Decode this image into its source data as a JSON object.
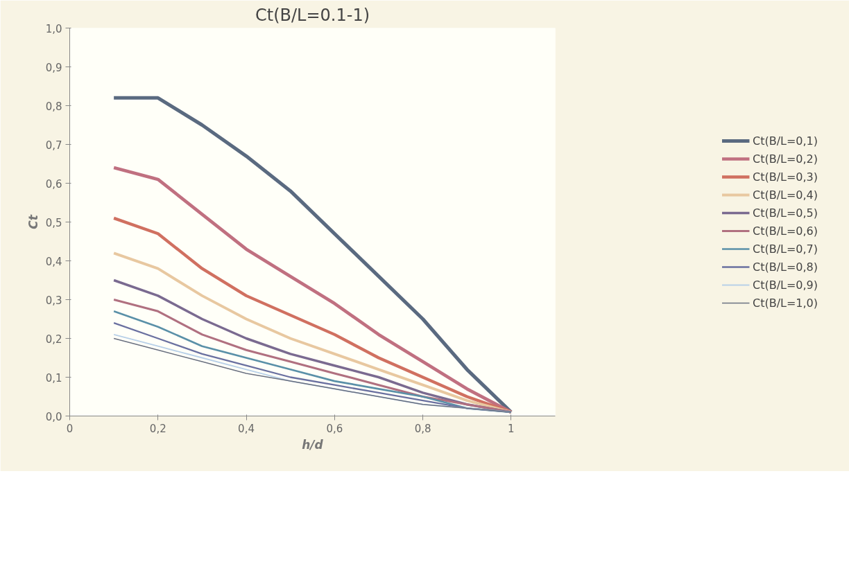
{
  "chart_data": {
    "type": "line",
    "title": "Ct(B/L=0.1-1)",
    "xlabel": "h/d",
    "ylabel": "Ct",
    "x": [
      0.1,
      0.2,
      0.3,
      0.4,
      0.5,
      0.6,
      0.7,
      0.8,
      0.9,
      1.0
    ],
    "series": [
      {
        "name": "Ct(B/L=0,1)",
        "color": "#5a6a80",
        "values": [
          0.82,
          0.82,
          0.75,
          0.67,
          0.58,
          0.47,
          0.36,
          0.25,
          0.12,
          0.01
        ]
      },
      {
        "name": "Ct(B/L=0,2)",
        "color": "#c07080",
        "values": [
          0.64,
          0.61,
          0.52,
          0.43,
          0.36,
          0.29,
          0.21,
          0.14,
          0.07,
          0.01
        ]
      },
      {
        "name": "Ct(B/L=0,3)",
        "color": "#d07060",
        "values": [
          0.51,
          0.47,
          0.38,
          0.31,
          0.26,
          0.21,
          0.15,
          0.1,
          0.05,
          0.01
        ]
      },
      {
        "name": "Ct(B/L=0,4)",
        "color": "#e8c8a0",
        "values": [
          0.42,
          0.38,
          0.31,
          0.25,
          0.2,
          0.16,
          0.12,
          0.08,
          0.04,
          0.01
        ]
      },
      {
        "name": "Ct(B/L=0,5)",
        "color": "#7a6a90",
        "values": [
          0.35,
          0.31,
          0.25,
          0.2,
          0.16,
          0.13,
          0.1,
          0.06,
          0.03,
          0.01
        ]
      },
      {
        "name": "Ct(B/L=0,6)",
        "color": "#b07080",
        "values": [
          0.3,
          0.27,
          0.21,
          0.17,
          0.14,
          0.11,
          0.08,
          0.05,
          0.03,
          0.01
        ]
      },
      {
        "name": "Ct(B/L=0,7)",
        "color": "#5a90a8",
        "values": [
          0.27,
          0.23,
          0.18,
          0.15,
          0.12,
          0.09,
          0.07,
          0.05,
          0.02,
          0.01
        ]
      },
      {
        "name": "Ct(B/L=0,8)",
        "color": "#6a70a0",
        "values": [
          0.24,
          0.2,
          0.16,
          0.13,
          0.1,
          0.08,
          0.06,
          0.04,
          0.02,
          0.01
        ]
      },
      {
        "name": "Ct(B/L=0,9)",
        "color": "#b8d0e8",
        "values": [
          0.21,
          0.18,
          0.15,
          0.12,
          0.09,
          0.07,
          0.05,
          0.03,
          0.02,
          0.01
        ]
      },
      {
        "name": "Ct(B/L=1,0)",
        "color": "#6a7080",
        "values": [
          0.2,
          0.17,
          0.14,
          0.11,
          0.09,
          0.07,
          0.05,
          0.03,
          0.02,
          0.01
        ]
      }
    ],
    "xlim": [
      0,
      1.1
    ],
    "ylim": [
      0,
      1.0
    ],
    "xticks": [
      0,
      {
        "value": 0.2,
        "label": "0,2"
      },
      {
        "value": 0.4,
        "label": "0,4"
      },
      {
        "value": 0.6,
        "label": "0,6"
      },
      {
        "value": 0.8,
        "label": "0,8"
      },
      1
    ],
    "yticks": [
      {
        "value": 0,
        "label": "0,0"
      },
      {
        "value": 0.1,
        "label": "0,1"
      },
      {
        "value": 0.2,
        "label": "0,2"
      },
      {
        "value": 0.3,
        "label": "0,3"
      },
      {
        "value": 0.4,
        "label": "0,4"
      },
      {
        "value": 0.5,
        "label": "0,5"
      },
      {
        "value": 0.6,
        "label": "0,6"
      },
      {
        "value": 0.7,
        "label": "0,7"
      },
      {
        "value": 0.8,
        "label": "0,8"
      },
      {
        "value": 0.9,
        "label": "0,9"
      },
      {
        "value": 1.0,
        "label": "1,0"
      }
    ],
    "grid": false,
    "legend": "right",
    "line_style": "solid",
    "marker": "none"
  }
}
